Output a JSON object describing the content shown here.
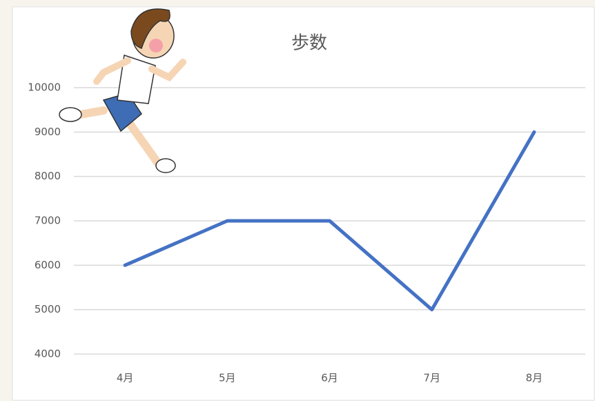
{
  "chart_data": {
    "type": "line",
    "title": "歩数",
    "categories": [
      "4月",
      "5月",
      "6月",
      "7月",
      "8月"
    ],
    "series": [
      {
        "name": "歩数",
        "color": "#4472c4",
        "values": [
          6000,
          7000,
          7000,
          5000,
          9000
        ]
      }
    ],
    "ylim": [
      4000,
      10000
    ],
    "yticks": [
      4000,
      5000,
      6000,
      7000,
      8000,
      9000,
      10000
    ],
    "grid": true
  }
}
